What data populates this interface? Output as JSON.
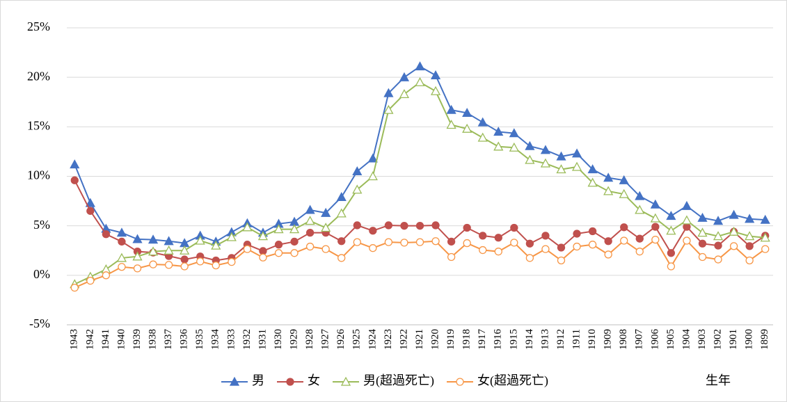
{
  "chart_data": {
    "type": "line",
    "x_label": "生年",
    "categories": [
      "1943",
      "1942",
      "1941",
      "1940",
      "1939",
      "1938",
      "1937",
      "1936",
      "1935",
      "1934",
      "1933",
      "1932",
      "1931",
      "1930",
      "1929",
      "1928",
      "1927",
      "1926",
      "1925",
      "1924",
      "1923",
      "1922",
      "1921",
      "1920",
      "1919",
      "1918",
      "1917",
      "1916",
      "1915",
      "1914",
      "1913",
      "1912",
      "1911",
      "1910",
      "1909",
      "1908",
      "1907",
      "1906",
      "1905",
      "1904",
      "1903",
      "1902",
      "1901",
      "1900",
      "1899"
    ],
    "series": [
      {
        "name": "男",
        "color": "#4472c4",
        "marker": "triangle",
        "filled": true,
        "values": [
          11.2,
          7.3,
          4.7,
          4.3,
          3.65,
          3.6,
          3.45,
          3.25,
          4.0,
          3.4,
          4.35,
          5.25,
          4.3,
          5.2,
          5.4,
          6.6,
          6.3,
          7.9,
          10.5,
          11.8,
          18.4,
          20.0,
          21.1,
          20.2,
          16.7,
          16.4,
          15.45,
          14.5,
          14.35,
          13.05,
          12.65,
          12.0,
          12.3,
          10.7,
          9.85,
          9.6,
          8.0,
          7.15,
          6.0,
          7.0,
          5.8,
          5.5,
          6.1,
          5.7,
          5.6
        ]
      },
      {
        "name": "女",
        "color": "#c0504d",
        "marker": "circle",
        "filled": true,
        "values": [
          9.6,
          6.5,
          4.15,
          3.4,
          2.4,
          2.3,
          1.95,
          1.6,
          1.9,
          1.5,
          1.75,
          3.1,
          2.45,
          3.1,
          3.4,
          4.3,
          4.3,
          3.45,
          5.05,
          4.5,
          5.05,
          5.0,
          5.0,
          5.05,
          3.4,
          4.8,
          4.0,
          3.8,
          4.8,
          3.2,
          4.0,
          2.8,
          4.2,
          4.45,
          3.45,
          4.85,
          3.7,
          4.9,
          2.25,
          4.9,
          3.2,
          3.0,
          4.4,
          2.95,
          4.0
        ]
      },
      {
        "name": "男(超過死亡)",
        "color": "#9bbb59",
        "marker": "triangle",
        "filled": false,
        "values": [
          -0.9,
          -0.15,
          0.6,
          1.75,
          1.9,
          2.4,
          2.5,
          2.5,
          3.5,
          3.0,
          3.85,
          4.85,
          3.95,
          4.65,
          4.65,
          5.5,
          4.8,
          6.25,
          8.65,
          10.0,
          16.7,
          18.3,
          19.5,
          18.6,
          15.2,
          14.8,
          13.9,
          13.0,
          12.9,
          11.65,
          11.3,
          10.7,
          10.95,
          9.35,
          8.5,
          8.2,
          6.6,
          5.75,
          4.5,
          5.55,
          4.3,
          3.95,
          4.4,
          3.95,
          3.8
        ]
      },
      {
        "name": "女(超過死亡)",
        "color": "#f79646",
        "marker": "circle",
        "filled": false,
        "values": [
          -1.25,
          -0.55,
          0.0,
          0.85,
          0.7,
          1.1,
          1.05,
          0.9,
          1.4,
          1.0,
          1.35,
          2.65,
          1.8,
          2.25,
          2.25,
          2.9,
          2.65,
          1.75,
          3.35,
          2.75,
          3.35,
          3.3,
          3.35,
          3.45,
          1.85,
          3.25,
          2.55,
          2.4,
          3.3,
          1.75,
          2.65,
          1.5,
          2.9,
          3.1,
          2.1,
          3.5,
          2.4,
          3.6,
          0.9,
          3.5,
          1.85,
          1.6,
          2.95,
          1.5,
          2.65
        ]
      }
    ],
    "ylim": [
      -5,
      25
    ],
    "yticks": [
      {
        "value": -5,
        "label": "-5%"
      },
      {
        "value": 0,
        "label": "0%"
      },
      {
        "value": 5,
        "label": "5%"
      },
      {
        "value": 10,
        "label": "10%"
      },
      {
        "value": 15,
        "label": "15%"
      },
      {
        "value": 20,
        "label": "20%"
      },
      {
        "value": 25,
        "label": "25%"
      }
    ],
    "negative_tick_color": "#ff0000",
    "grid": true,
    "legend": "bottom"
  }
}
